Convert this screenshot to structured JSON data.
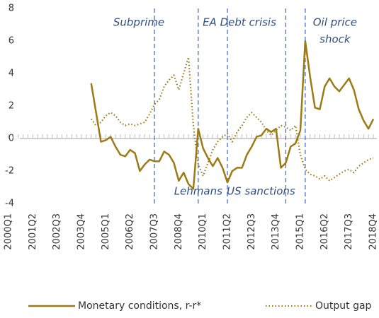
{
  "chart_data": {
    "type": "line",
    "categories": [
      "2000Q1",
      null,
      null,
      null,
      null,
      "2001Q2",
      null,
      null,
      null,
      null,
      "2002Q3",
      null,
      null,
      null,
      null,
      "2003Q4",
      null,
      null,
      null,
      null,
      "2005Q1",
      null,
      null,
      null,
      null,
      "2006Q2",
      null,
      null,
      null,
      null,
      "2007Q3",
      null,
      null,
      null,
      null,
      "2008Q4",
      null,
      null,
      null,
      null,
      "2010Q1",
      null,
      null,
      null,
      null,
      "2011Q2",
      null,
      null,
      null,
      null,
      "2012Q3",
      null,
      null,
      null,
      null,
      "2013Q4",
      null,
      null,
      null,
      null,
      "2015Q1",
      null,
      null,
      null,
      null,
      "2016Q2",
      null,
      null,
      null,
      null,
      "2017Q3",
      null,
      null,
      null,
      null,
      "2018Q4"
    ],
    "series": [
      {
        "name": "Monetary conditions, r-r*",
        "color": "#9c7a14",
        "style": "solid",
        "values": [
          null,
          null,
          null,
          null,
          null,
          null,
          null,
          null,
          null,
          null,
          null,
          null,
          null,
          null,
          null,
          null,
          null,
          3.4,
          1.6,
          -0.2,
          -0.1,
          0.1,
          -0.5,
          -1.0,
          -1.1,
          -0.7,
          -0.9,
          -2.0,
          -1.6,
          -1.3,
          -1.4,
          -1.4,
          -0.8,
          -1.0,
          -1.5,
          -2.6,
          -2.1,
          -2.8,
          -3.1,
          0.6,
          -0.6,
          -1.2,
          -1.7,
          -1.2,
          -1.8,
          -2.7,
          -2.0,
          -1.8,
          -1.8,
          -1.0,
          -0.5,
          0.1,
          0.2,
          0.6,
          0.4,
          0.6,
          -1.8,
          -1.5,
          -0.5,
          -0.3,
          0.5,
          6.0,
          3.8,
          1.9,
          1.8,
          3.2,
          3.7,
          3.2,
          2.9,
          3.3,
          3.7,
          3.0,
          1.8,
          1.1,
          0.6,
          1.2
        ]
      },
      {
        "name": "Output gap",
        "color": "#9c7a14",
        "style": "dotted",
        "values": [
          null,
          null,
          null,
          null,
          null,
          null,
          null,
          null,
          null,
          null,
          null,
          null,
          null,
          null,
          null,
          null,
          null,
          1.2,
          0.8,
          1.0,
          1.4,
          1.6,
          1.4,
          1.0,
          0.8,
          0.9,
          0.8,
          0.9,
          1.0,
          1.5,
          2.1,
          2.4,
          3.2,
          3.6,
          3.9,
          3.0,
          4.0,
          5.0,
          0.8,
          -1.6,
          -2.3,
          -1.5,
          -0.7,
          -0.2,
          0.1,
          0.3,
          -0.2,
          0.4,
          0.8,
          1.3,
          1.6,
          1.3,
          1.0,
          0.5,
          0.2,
          0.5,
          0.8,
          0.7,
          0.5,
          0.8,
          -1.0,
          -1.9,
          -2.2,
          -2.3,
          -2.5,
          -2.3,
          -2.6,
          -2.4,
          -2.2,
          -2.0,
          -1.9,
          -2.1,
          -1.7,
          -1.5,
          -1.3,
          -1.2
        ]
      }
    ],
    "ylim": [
      -4,
      8
    ],
    "yticks": [
      -4,
      -2,
      0,
      2,
      4,
      6,
      8
    ],
    "events": [
      {
        "at": 30,
        "lines": [
          "Subprime"
        ]
      },
      {
        "at": 39,
        "lines": [
          "Lehmans"
        ]
      },
      {
        "at": 45,
        "lines": [
          "EA Debt crisis"
        ]
      },
      {
        "at": 57,
        "lines": [
          "US sanctions"
        ]
      },
      {
        "at": 61,
        "lines": [
          "Oil price",
          "shock"
        ]
      }
    ],
    "event_color": "#4472c4",
    "legend": "bottom"
  }
}
